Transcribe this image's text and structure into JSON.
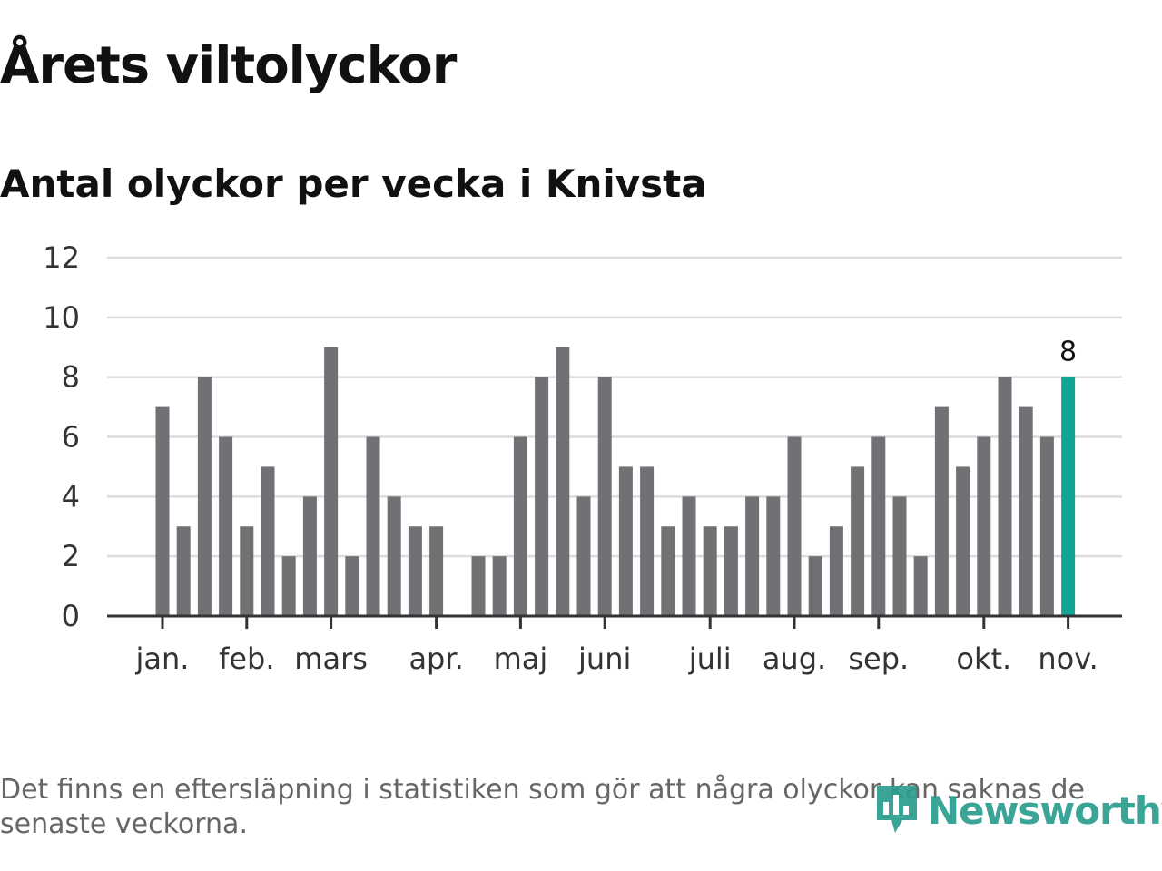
{
  "chart_data": {
    "type": "bar",
    "title": "Årets viltolyckor",
    "subtitle": "Antal olyckor per vecka i Knivsta",
    "xlabel": "",
    "ylabel": "",
    "ylim": [
      0,
      12
    ],
    "yticks": [
      "0",
      "2",
      "4",
      "6",
      "8",
      "10",
      "12"
    ],
    "grid": true,
    "month_labels": [
      "jan.",
      "feb.",
      "mars",
      "apr.",
      "maj",
      "juni",
      "juli",
      "aug.",
      "sep.",
      "okt.",
      "nov."
    ],
    "month_start_week": [
      1,
      5,
      9,
      14,
      18,
      22,
      27,
      31,
      35,
      40,
      44
    ],
    "weeks": [
      1,
      2,
      3,
      4,
      5,
      6,
      7,
      8,
      9,
      10,
      11,
      12,
      13,
      14,
      15,
      16,
      17,
      18,
      19,
      20,
      21,
      22,
      23,
      24,
      25,
      26,
      27,
      28,
      29,
      30,
      31,
      32,
      33,
      34,
      35,
      36,
      37,
      38,
      39,
      40,
      41,
      42,
      43,
      44
    ],
    "values": [
      7,
      3,
      8,
      6,
      3,
      5,
      2,
      4,
      9,
      2,
      6,
      4,
      3,
      3,
      0,
      2,
      2,
      6,
      8,
      9,
      4,
      8,
      5,
      5,
      3,
      4,
      3,
      3,
      4,
      4,
      6,
      2,
      3,
      5,
      6,
      4,
      2,
      7,
      5,
      6,
      8,
      7,
      6,
      8
    ],
    "highlight_index": 43,
    "highlight_label": "8",
    "colors": {
      "bar": "#717075",
      "highlight": "#12a596",
      "grid": "#dcdcdc",
      "axis": "#333333"
    }
  },
  "footnote": "Det finns en eftersläpning i statistiken som gör att några olyckor kan saknas de senaste veckorna.",
  "brand": {
    "name": "Newsworthy",
    "icon": "newsworthy-logo-icon",
    "color": "#2a9d8f"
  }
}
